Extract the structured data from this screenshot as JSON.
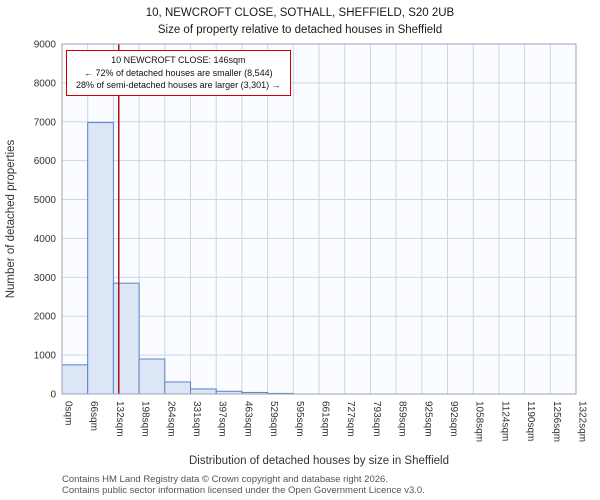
{
  "title": "10, NEWCROFT CLOSE, SOTHALL, SHEFFIELD, S20 2UB",
  "subtitle": "Size of property relative to detached houses in Sheffield",
  "annotation": {
    "line1": "10 NEWCROFT CLOSE: 146sqm",
    "line2": "← 72% of detached houses are smaller (8,544)",
    "line3": "28% of semi-detached houses are larger (3,301) →"
  },
  "footer": {
    "line1": "Contains HM Land Registry data © Crown copyright and database right 2026.",
    "line2": "Contains public sector information licensed under the Open Government Licence v3.0."
  },
  "chart_data": {
    "type": "bar",
    "title": "10, NEWCROFT CLOSE, SOTHALL, SHEFFIELD, S20 2UB",
    "subtitle": "Size of property relative to detached houses in Sheffield",
    "xlabel": "Distribution of detached houses by size in Sheffield",
    "ylabel": "Number of detached properties",
    "categories": [
      "0sqm",
      "66sqm",
      "132sqm",
      "198sqm",
      "264sqm",
      "331sqm",
      "397sqm",
      "463sqm",
      "529sqm",
      "595sqm",
      "661sqm",
      "727sqm",
      "793sqm",
      "859sqm",
      "925sqm",
      "992sqm",
      "1058sqm",
      "1124sqm",
      "1190sqm",
      "1256sqm",
      "1322sqm"
    ],
    "values": [
      750,
      6980,
      2850,
      900,
      310,
      130,
      70,
      40,
      15,
      0,
      0,
      0,
      0,
      0,
      0,
      0,
      0,
      0,
      0,
      0
    ],
    "marker_value_sqm": 146,
    "x_max_sqm": 1322,
    "ylim": [
      0,
      9000
    ],
    "ytick_step": 1000,
    "grid": true,
    "colors": {
      "bar_fill": "#dce6f7",
      "bar_stroke": "#5b83c4",
      "marker_line": "#aa0000",
      "grid": "#ccd5e8",
      "frame": "#9aa3b5",
      "plot_bg": "#fbfcff"
    }
  }
}
